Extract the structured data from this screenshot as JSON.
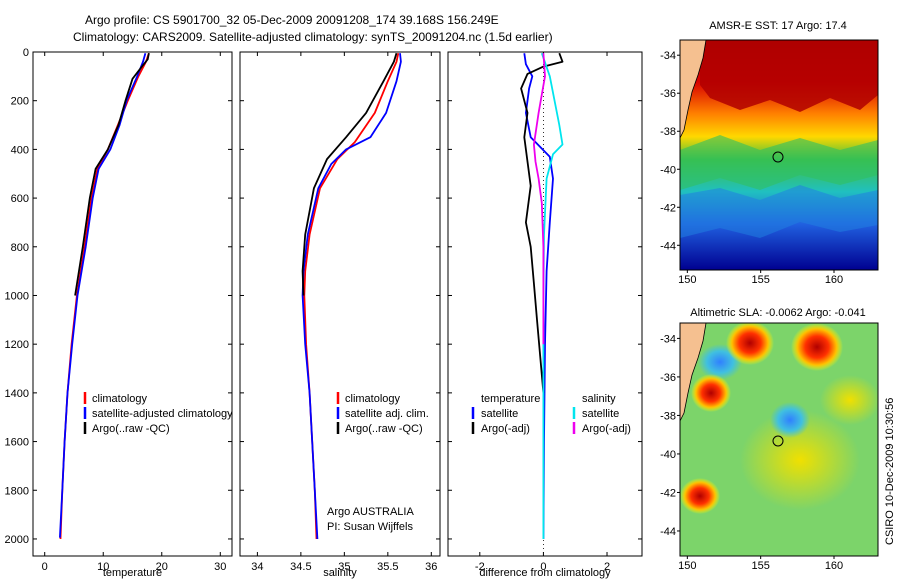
{
  "header": {
    "line1": "Argo profile: CS 5901700_32 05-Dec-2009 20091208_174 39.168S 156.249E",
    "line2": "Climatology: CARS2009. Satellite-adjusted climatology: synTS_20091204.nc (1.5d earlier)"
  },
  "colors": {
    "climatology": "#ff0000",
    "satellite": "#0000ff",
    "argo": "#000000",
    "cyan": "#00e5ee",
    "magenta": "#ee00ee"
  },
  "chart_data": [
    {
      "id": "temperature",
      "type": "line",
      "xlabel": "temperature",
      "xlim": [
        -2,
        32
      ],
      "ylim": [
        0,
        2070
      ],
      "y_inverted": true,
      "xticks": [
        "0",
        "10",
        "20",
        "30"
      ],
      "yticks": [
        "0",
        "200",
        "400",
        "600",
        "800",
        "1000",
        "1200",
        "1400",
        "1600",
        "1800",
        "2000"
      ],
      "legend": [
        "climatology",
        "satellite-adjusted climatology",
        "Argo(..raw -QC)"
      ],
      "series": [
        {
          "name": "climatology",
          "color": "#ff0000",
          "points": [
            [
              17.8,
              5
            ],
            [
              17.3,
              40
            ],
            [
              16.0,
              100
            ],
            [
              14.2,
              200
            ],
            [
              12.5,
              300
            ],
            [
              10.8,
              400
            ],
            [
              9.0,
              480
            ],
            [
              8.0,
              600
            ],
            [
              6.8,
              800
            ],
            [
              5.5,
              1000
            ],
            [
              4.6,
              1200
            ],
            [
              3.9,
              1400
            ],
            [
              3.4,
              1600
            ],
            [
              3.0,
              1800
            ],
            [
              2.7,
              2000
            ]
          ]
        },
        {
          "name": "satellite-adjusted climatology",
          "color": "#0000ff",
          "points": [
            [
              17.2,
              5
            ],
            [
              16.8,
              40
            ],
            [
              15.8,
              100
            ],
            [
              14.0,
              200
            ],
            [
              12.8,
              300
            ],
            [
              11.2,
              400
            ],
            [
              9.2,
              480
            ],
            [
              8.2,
              600
            ],
            [
              7.0,
              800
            ],
            [
              5.6,
              1000
            ],
            [
              4.7,
              1200
            ],
            [
              3.9,
              1400
            ],
            [
              3.4,
              1600
            ],
            [
              3.0,
              1800
            ],
            [
              2.6,
              1995
            ]
          ]
        },
        {
          "name": "Argo(..raw -QC)",
          "color": "#000000",
          "points": [
            [
              17.8,
              5
            ],
            [
              17.6,
              30
            ],
            [
              16.6,
              60
            ],
            [
              15.0,
              110
            ],
            [
              13.8,
              200
            ],
            [
              12.6,
              300
            ],
            [
              10.8,
              400
            ],
            [
              8.7,
              480
            ],
            [
              7.7,
              600
            ],
            [
              6.5,
              800
            ],
            [
              5.2,
              1000
            ]
          ]
        }
      ]
    },
    {
      "id": "salinity",
      "type": "line",
      "xlabel": "salinity",
      "xlim": [
        33.8,
        36.1
      ],
      "ylim": [
        0,
        2070
      ],
      "y_inverted": true,
      "xticks": [
        "34",
        "34.5",
        "35",
        "35.5",
        "36"
      ],
      "legend": [
        "climatology",
        "satellite adj. clim.",
        "Argo(..raw -QC)"
      ],
      "annotations": [
        "Argo AUSTRALIA",
        "PI: Susan Wijffels"
      ],
      "series": [
        {
          "name": "climatology",
          "color": "#ff0000",
          "points": [
            [
              35.62,
              5
            ],
            [
              35.6,
              40
            ],
            [
              35.5,
              120
            ],
            [
              35.35,
              250
            ],
            [
              35.12,
              370
            ],
            [
              34.92,
              440
            ],
            [
              34.72,
              560
            ],
            [
              34.6,
              750
            ],
            [
              34.55,
              900
            ],
            [
              34.54,
              1000
            ],
            [
              34.56,
              1200
            ],
            [
              34.6,
              1400
            ],
            [
              34.63,
              1600
            ],
            [
              34.66,
              1800
            ],
            [
              34.68,
              2000
            ]
          ]
        },
        {
          "name": "satellite adj. clim.",
          "color": "#0000ff",
          "points": [
            [
              35.64,
              5
            ],
            [
              35.65,
              40
            ],
            [
              35.6,
              120
            ],
            [
              35.48,
              250
            ],
            [
              35.3,
              350
            ],
            [
              35.02,
              400
            ],
            [
              34.85,
              460
            ],
            [
              34.7,
              560
            ],
            [
              34.58,
              750
            ],
            [
              34.53,
              900
            ],
            [
              34.52,
              1000
            ],
            [
              34.55,
              1200
            ],
            [
              34.6,
              1400
            ],
            [
              34.63,
              1600
            ],
            [
              34.66,
              1800
            ],
            [
              34.69,
              2000
            ]
          ]
        },
        {
          "name": "Argo(..raw -QC)",
          "color": "#000000",
          "points": [
            [
              35.6,
              5
            ],
            [
              35.57,
              40
            ],
            [
              35.45,
              120
            ],
            [
              35.25,
              250
            ],
            [
              35.02,
              350
            ],
            [
              34.8,
              440
            ],
            [
              34.65,
              560
            ],
            [
              34.55,
              750
            ],
            [
              34.52,
              900
            ],
            [
              34.53,
              1000
            ]
          ]
        }
      ]
    },
    {
      "id": "difference",
      "type": "line",
      "xlabel": "difference from climatology",
      "xlim": [
        -3,
        3.1
      ],
      "ylim": [
        0,
        2070
      ],
      "y_inverted": true,
      "xticks": [
        "-2",
        "0",
        "2"
      ],
      "legend_left_title": "temperature",
      "legend_left": [
        "satellite",
        "Argo(-adj)"
      ],
      "legend_right_title": "salinity",
      "legend_right": [
        "satellite",
        "Argo(-adj)"
      ],
      "series": [
        {
          "name": "temperature satellite",
          "color": "#0000ff",
          "points": [
            [
              -0.6,
              5
            ],
            [
              -0.55,
              50
            ],
            [
              -0.35,
              100
            ],
            [
              -0.45,
              150
            ],
            [
              -0.55,
              250
            ],
            [
              -0.4,
              350
            ],
            [
              0.2,
              430
            ],
            [
              0.3,
              520
            ],
            [
              0.2,
              700
            ],
            [
              0.1,
              900
            ],
            [
              0.05,
              1200
            ],
            [
              0.02,
              1600
            ],
            [
              0.0,
              2000
            ]
          ]
        },
        {
          "name": "temperature Argo(-adj)",
          "color": "#000000",
          "points": [
            [
              0.5,
              5
            ],
            [
              0.6,
              40
            ],
            [
              0.0,
              60
            ],
            [
              -0.5,
              90
            ],
            [
              -0.7,
              150
            ],
            [
              -0.5,
              250
            ],
            [
              -0.6,
              350
            ],
            [
              -0.5,
              450
            ],
            [
              -0.4,
              550
            ],
            [
              -0.55,
              700
            ],
            [
              -0.4,
              800
            ],
            [
              -0.3,
              950
            ],
            [
              -0.2,
              1100
            ],
            [
              -0.1,
              1250
            ],
            [
              0.0,
              1400
            ]
          ]
        },
        {
          "name": "salinity satellite",
          "color": "#00e5ee",
          "points": [
            [
              -0.05,
              5
            ],
            [
              0.2,
              100
            ],
            [
              0.5,
              300
            ],
            [
              0.6,
              380
            ],
            [
              0.3,
              420
            ],
            [
              0.1,
              520
            ],
            [
              0.02,
              750
            ],
            [
              0.0,
              1000
            ],
            [
              0.0,
              1500
            ],
            [
              0.0,
              2000
            ]
          ]
        },
        {
          "name": "salinity Argo(-adj)",
          "color": "#ee00ee",
          "points": [
            [
              0.0,
              5
            ],
            [
              0.05,
              100
            ],
            [
              -0.15,
              250
            ],
            [
              -0.3,
              380
            ],
            [
              -0.25,
              450
            ],
            [
              -0.15,
              520
            ],
            [
              -0.05,
              620
            ],
            [
              0.0,
              800
            ],
            [
              0.0,
              1000
            ],
            [
              0.0,
              1200
            ]
          ]
        }
      ]
    },
    {
      "id": "sst_map",
      "type": "heatmap",
      "title": "AMSR-E SST: 17 Argo: 17.4",
      "xticks": [
        "150",
        "155",
        "160"
      ],
      "yticks": [
        "-34",
        "-36",
        "-38",
        "-40",
        "-42",
        "-44"
      ],
      "xlim": [
        149.5,
        163
      ],
      "ylim": [
        -45.3,
        -33.2
      ],
      "argo_position": [
        156.25,
        -39.17
      ]
    },
    {
      "id": "sla_map",
      "type": "heatmap",
      "title": "Altimetric SLA: -0.0062 Argo: -0.041",
      "xticks": [
        "150",
        "155",
        "160"
      ],
      "yticks": [
        "-34",
        "-36",
        "-38",
        "-40",
        "-42",
        "-44"
      ],
      "xlim": [
        149.5,
        163
      ],
      "ylim": [
        -45.3,
        -33.2
      ],
      "argo_position": [
        156.25,
        -39.17
      ]
    }
  ],
  "footer": {
    "credit": "CSIRO 10-Dec-2009 10:30:56"
  }
}
